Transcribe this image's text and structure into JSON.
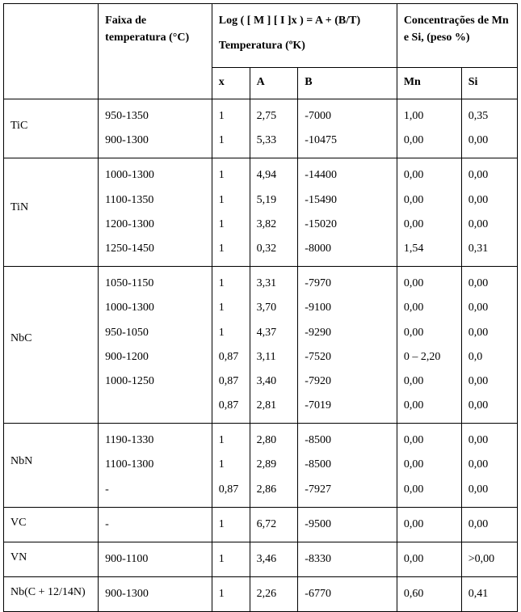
{
  "table": {
    "header": {
      "compound": "",
      "temp_range": "Faixa de temperatura (°C)",
      "equation_title": "Log ( [ M ] [ I ]x ) = A + (B/T)",
      "equation_sub": "Temperatura (ºK)",
      "conc_title": "Concentrações de Mn e Si, (peso %)",
      "x": "x",
      "A": "A",
      "B": "B",
      "Mn": "Mn",
      "Si": "Si"
    },
    "rows": [
      {
        "name": "TiC",
        "temp": [
          "950-1350",
          "900-1300"
        ],
        "x": [
          "1",
          "1"
        ],
        "A": [
          "2,75",
          "5,33"
        ],
        "B": [
          "-7000",
          "-10475"
        ],
        "Mn": [
          "1,00",
          "0,00"
        ],
        "Si": [
          "0,35",
          "0,00"
        ]
      },
      {
        "name": "TiN",
        "temp": [
          "1000-1300",
          "1100-1350",
          "1200-1300",
          "1250-1450"
        ],
        "x": [
          "1",
          "1",
          "1",
          "1"
        ],
        "A": [
          "4,94",
          "5,19",
          "3,82",
          "0,32"
        ],
        "B": [
          "-14400",
          "-15490",
          "-15020",
          "-8000"
        ],
        "Mn": [
          "0,00",
          "0,00",
          "0,00",
          "1,54"
        ],
        "Si": [
          "0,00",
          "0,00",
          "0,00",
          "0,31"
        ]
      },
      {
        "name": "NbC",
        "temp": [
          "1050-1150",
          "1000-1300",
          "950-1050",
          "900-1200",
          "1000-1250",
          ""
        ],
        "x": [
          "1",
          "1",
          "1",
          "0,87",
          "0,87",
          "0,87"
        ],
        "A": [
          "3,31",
          "3,70",
          "4,37",
          "3,11",
          "3,40",
          "2,81"
        ],
        "B": [
          "-7970",
          "-9100",
          "-9290",
          "-7520",
          "-7920",
          "-7019"
        ],
        "Mn": [
          "0,00",
          "0,00",
          "0,00",
          "0 – 2,20",
          "0,00",
          "0,00"
        ],
        "Si": [
          "0,00",
          "0,00",
          "0,00",
          "0,0",
          "0,00",
          "0,00"
        ]
      },
      {
        "name": "NbN",
        "temp": [
          "1190-1330",
          "1100-1300",
          "-"
        ],
        "x": [
          "1",
          "1",
          "0,87"
        ],
        "A": [
          "2,80",
          "2,89",
          "2,86"
        ],
        "B": [
          "-8500",
          "-8500",
          "-7927"
        ],
        "Mn": [
          "0,00",
          "0,00",
          "0,00"
        ],
        "Si": [
          "0,00",
          "0,00",
          "0,00"
        ]
      },
      {
        "name": "VC",
        "temp": [
          "-"
        ],
        "x": [
          "1"
        ],
        "A": [
          "6,72"
        ],
        "B": [
          "-9500"
        ],
        "Mn": [
          "0,00"
        ],
        "Si": [
          "0,00"
        ]
      },
      {
        "name": "VN",
        "temp": [
          "900-1100"
        ],
        "x": [
          "1"
        ],
        "A": [
          "3,46"
        ],
        "B": [
          "-8330"
        ],
        "Mn": [
          "0,00"
        ],
        "Si": [
          ">0,00"
        ]
      },
      {
        "name": "Nb(C + 12/14N)",
        "temp": [
          "900-1300"
        ],
        "x": [
          "1"
        ],
        "A": [
          "2,26"
        ],
        "B": [
          "-6770"
        ],
        "Mn": [
          "0,60"
        ],
        "Si": [
          "0,41"
        ]
      }
    ]
  },
  "style": {
    "font_family": "Times New Roman",
    "base_font_pt": 11,
    "border_color": "#000000",
    "background_color": "#ffffff",
    "text_color": "#000000"
  }
}
